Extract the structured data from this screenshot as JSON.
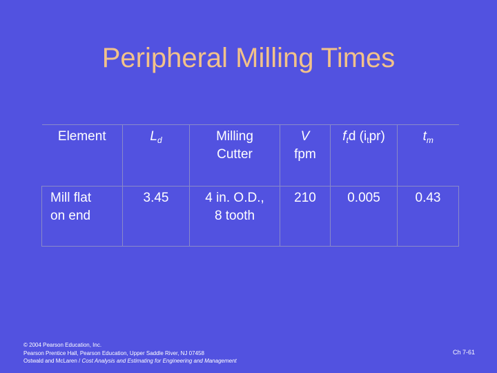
{
  "slide": {
    "title": "Peripheral Milling Times",
    "table": {
      "headers": {
        "element": "Element",
        "ld_main": "L",
        "ld_sub": "d",
        "cutter_line1": "Milling",
        "cutter_line2": "Cutter",
        "v_line1": "V",
        "v_line2": "fpm",
        "feed_a": "f",
        "feed_a_sub": "t",
        "feed_b": "d (i",
        "feed_b_sub": "t",
        "feed_c": "pr)",
        "tm_main": "t",
        "tm_sub": "m"
      },
      "row": {
        "element_line1": "Mill flat",
        "element_line2": "on end",
        "ld": "3.45",
        "cutter_line1": "4 in. O.D.,",
        "cutter_line2": "8 tooth",
        "v": "210",
        "feed": "0.005",
        "tm": "0.43"
      }
    },
    "footer": {
      "line1": "© 2004 Pearson Education, Inc.",
      "line2": "Pearson Prentice Hall, Pearson Education, Upper Saddle River, NJ 07458",
      "line3_plain": "Ostwald and McLaren / ",
      "line3_italic": "Cost Analysis and Estimating for Engineering and Management"
    },
    "page_number": "Ch 7-61"
  }
}
